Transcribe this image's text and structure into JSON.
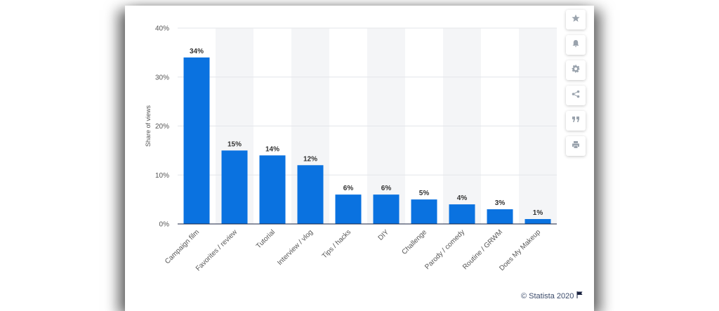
{
  "chart_data": {
    "type": "bar",
    "categories": [
      "Campaign film",
      "Favorites / review",
      "Tutorial",
      "Interview / vlog",
      "Tips / hacks",
      "DIY",
      "Challenge",
      "Parody / comedy",
      "Routine / GRWM",
      "Does My Makeup"
    ],
    "values": [
      34,
      15,
      14,
      12,
      6,
      6,
      5,
      4,
      3,
      1
    ],
    "data_labels": [
      "34%",
      "15%",
      "14%",
      "12%",
      "6%",
      "6%",
      "5%",
      "4%",
      "3%",
      "1%"
    ],
    "ylabel": "Share of views",
    "ylim": [
      0,
      40
    ],
    "yticks": [
      0,
      10,
      20,
      30,
      40
    ],
    "ytick_labels": [
      "0%",
      "10%",
      "20%",
      "30%",
      "40%"
    ],
    "bar_color": "#0a72e0",
    "grid": true,
    "legend": "none"
  },
  "toolbar": {
    "icons": [
      "star-icon",
      "bell-icon",
      "gear-icon",
      "share-icon",
      "quote-icon",
      "print-icon"
    ]
  },
  "footer": {
    "credit": "© Statista 2020"
  }
}
